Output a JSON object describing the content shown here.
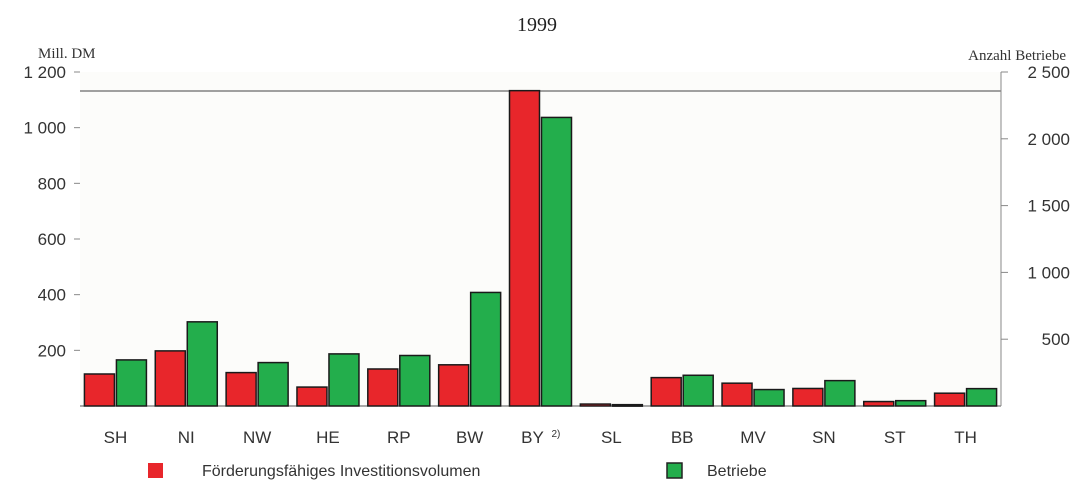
{
  "chart_data": {
    "type": "bar",
    "title": "1999",
    "left_axis_unit": "Mill. DM",
    "right_axis_unit": "Anzahl Betriebe",
    "left_ylim": [
      0,
      1200
    ],
    "right_ylim": [
      0,
      2500
    ],
    "left_ticks": [
      {
        "value": 200,
        "label": "200"
      },
      {
        "value": 400,
        "label": "400"
      },
      {
        "value": 600,
        "label": "600"
      },
      {
        "value": 800,
        "label": "800"
      },
      {
        "value": 1000,
        "label": "1 000"
      },
      {
        "value": 1200,
        "label": "1 200"
      }
    ],
    "right_ticks": [
      {
        "value": 500,
        "label": "500"
      },
      {
        "value": 1000,
        "label": "1 000"
      },
      {
        "value": 1500,
        "label": "1 500"
      },
      {
        "value": 2000,
        "label": "2 000"
      },
      {
        "value": 2500,
        "label": "2 500"
      }
    ],
    "categories": [
      "SH",
      "NI",
      "NW",
      "HE",
      "RP",
      "BW",
      "BY",
      "SL",
      "BB",
      "MV",
      "SN",
      "ST",
      "TH"
    ],
    "category_footnotes": {
      "BY": "2)"
    },
    "grid": false,
    "legend_position": "bottom",
    "series": [
      {
        "name": "Förderungsfähiges Investitionsvolumen",
        "axis": "left",
        "color": "#e8262b",
        "values": [
          115,
          198,
          120,
          68,
          133,
          148,
          1133,
          7,
          102,
          82,
          63,
          16,
          46
        ]
      },
      {
        "name": "Betriebe",
        "axis": "right",
        "color": "#23ae4c",
        "values": [
          345,
          630,
          325,
          390,
          378,
          850,
          2160,
          10,
          230,
          123,
          190,
          40,
          130
        ]
      }
    ]
  }
}
